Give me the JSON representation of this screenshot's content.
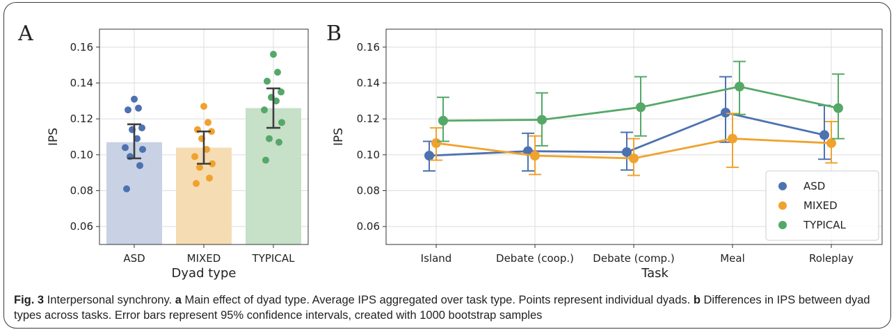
{
  "panel_a_letter": "A",
  "panel_b_letter": "B",
  "chart_data": [
    {
      "panel": "A",
      "type": "bar",
      "xlabel": "Dyad type",
      "ylabel": "IPS",
      "categories": [
        "ASD",
        "MIXED",
        "TYPICAL"
      ],
      "values": [
        0.107,
        0.104,
        0.126
      ],
      "ci_lower": [
        0.098,
        0.095,
        0.115
      ],
      "ci_upper": [
        0.117,
        0.113,
        0.137
      ],
      "colors": [
        "#4c72b0",
        "#f0a22e",
        "#55a868"
      ],
      "bar_colors": [
        "#c8d2e4",
        "#f6dcb3",
        "#c7e0c8"
      ],
      "points": [
        [
          0.081,
          0.094,
          0.099,
          0.103,
          0.104,
          0.109,
          0.114,
          0.115,
          0.125,
          0.126,
          0.131
        ],
        [
          0.084,
          0.087,
          0.093,
          0.095,
          0.099,
          0.103,
          0.109,
          0.113,
          0.114,
          0.118,
          0.127
        ],
        [
          0.097,
          0.107,
          0.109,
          0.118,
          0.125,
          0.13,
          0.132,
          0.135,
          0.141,
          0.146,
          0.156
        ]
      ],
      "yticks": [
        "0.06",
        "0.08",
        "0.10",
        "0.12",
        "0.14",
        "0.16"
      ],
      "ylim": [
        0.05,
        0.17
      ],
      "grid": true
    },
    {
      "panel": "B",
      "type": "line",
      "xlabel": "Task",
      "ylabel": "IPS",
      "categories": [
        "Island",
        "Debate (coop.)",
        "Debate (comp.)",
        "Meal",
        "Roleplay"
      ],
      "series": [
        {
          "name": "ASD",
          "color": "#4c72b0",
          "values": [
            0.0995,
            0.102,
            0.1015,
            0.1235,
            0.111
          ],
          "ci_lower": [
            0.091,
            0.091,
            0.0915,
            0.107,
            0.0975
          ],
          "ci_upper": [
            0.1075,
            0.112,
            0.1125,
            0.1435,
            0.1275
          ]
        },
        {
          "name": "MIXED",
          "color": "#f0a22e",
          "values": [
            0.1065,
            0.0995,
            0.098,
            0.109,
            0.1065
          ],
          "ci_lower": [
            0.097,
            0.089,
            0.0885,
            0.093,
            0.0955
          ],
          "ci_upper": [
            0.115,
            0.1105,
            0.109,
            0.123,
            0.1185
          ]
        },
        {
          "name": "TYPICAL",
          "color": "#55a868",
          "values": [
            0.119,
            0.1195,
            0.1265,
            0.138,
            0.126
          ],
          "ci_lower": [
            0.1075,
            0.105,
            0.1105,
            0.1225,
            0.109
          ],
          "ci_upper": [
            0.132,
            0.1345,
            0.1435,
            0.152,
            0.145
          ]
        }
      ],
      "yticks": [
        "0.06",
        "0.08",
        "0.10",
        "0.12",
        "0.14",
        "0.16"
      ],
      "ylim": [
        0.05,
        0.17
      ],
      "grid": true,
      "legend_position": "bottom-right"
    }
  ],
  "caption": {
    "fig_label": "Fig. 3",
    "title": " Interpersonal synchrony. ",
    "a_label": "a",
    "a_text": " Main effect of dyad type. Average IPS aggregated over task type. Points represent individual dyads. ",
    "b_label": "b",
    "b_text": " Differences in IPS between dyad types across tasks. Error bars represent 95% confidence intervals, created with 1000 bootstrap samples"
  }
}
